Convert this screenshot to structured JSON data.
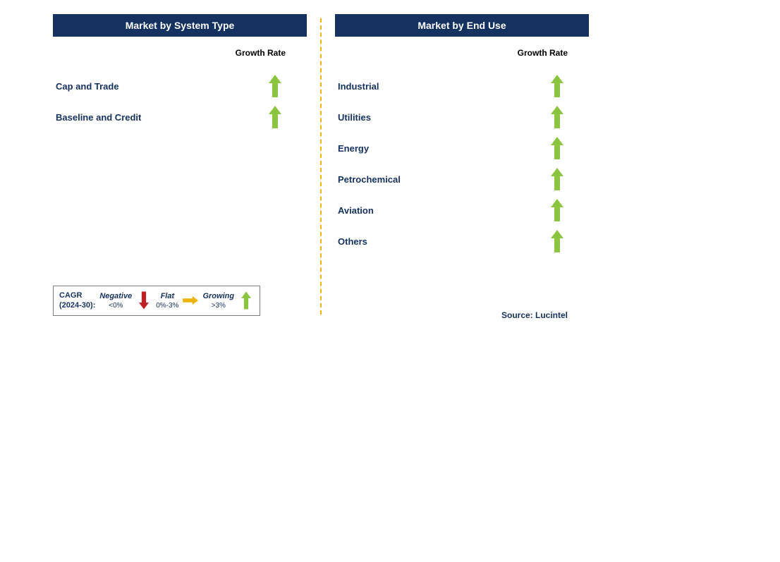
{
  "colors": {
    "header_bg": "#15315f",
    "header_text": "#ffffff",
    "label_text": "#15315f",
    "growth_rate_text": "#000000",
    "divider": "#f0b40f",
    "arrow_up": "#8bc540",
    "arrow_down": "#c21e25",
    "arrow_right": "#f0b40f",
    "legend_border": "#808080",
    "source_text": "#15315f"
  },
  "left_panel": {
    "title": "Market by System Type",
    "growth_rate_header": "Growth Rate",
    "rows": [
      {
        "label": "Cap and Trade",
        "growth": "growing"
      },
      {
        "label": "Baseline and Credit",
        "growth": "growing"
      }
    ]
  },
  "right_panel": {
    "title": "Market by End Use",
    "growth_rate_header": "Growth Rate",
    "rows": [
      {
        "label": "Industrial",
        "growth": "growing"
      },
      {
        "label": "Utilities",
        "growth": "growing"
      },
      {
        "label": "Energy",
        "growth": "growing"
      },
      {
        "label": "Petrochemical",
        "growth": "growing"
      },
      {
        "label": "Aviation",
        "growth": "growing"
      },
      {
        "label": "Others",
        "growth": "growing"
      }
    ]
  },
  "legend": {
    "title_line1": "CAGR",
    "title_line2": "(2024-30):",
    "items": [
      {
        "name": "Negative",
        "range": "<0%",
        "arrow": "down"
      },
      {
        "name": "Flat",
        "range": "0%-3%",
        "arrow": "right"
      },
      {
        "name": "Growing",
        "range": ">3%",
        "arrow": "up"
      }
    ]
  },
  "source_label": "Source: Lucintel"
}
